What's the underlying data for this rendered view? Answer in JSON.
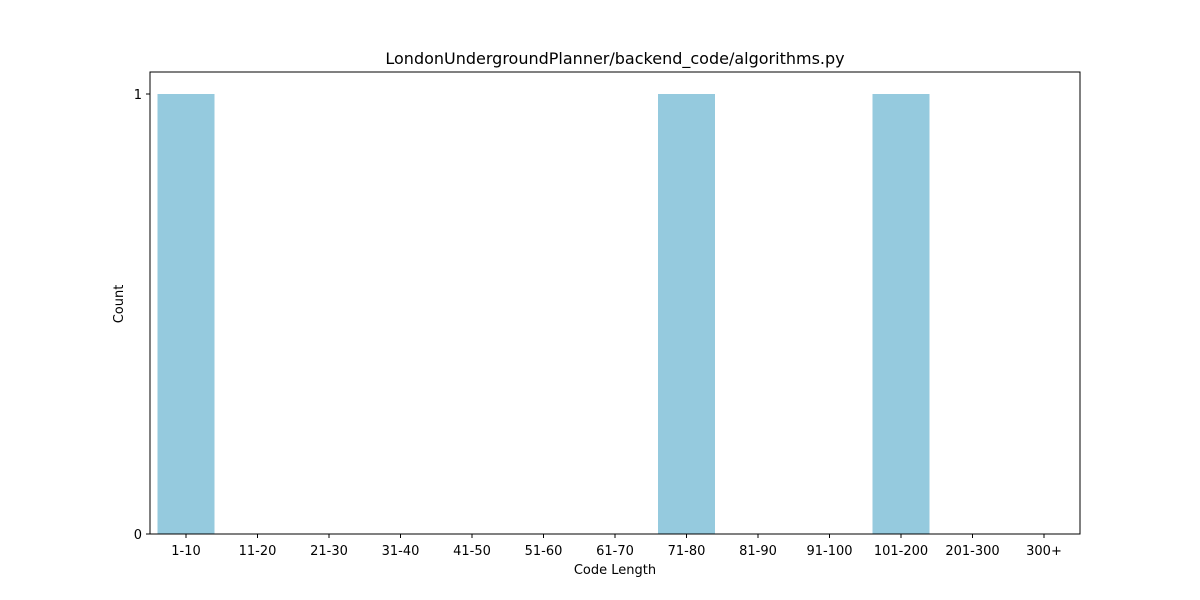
{
  "chart_data": {
    "type": "bar",
    "title": "LondonUndergroundPlanner/backend_code/algorithms.py",
    "xlabel": "Code Length",
    "ylabel": "Count",
    "categories": [
      "1-10",
      "11-20",
      "21-30",
      "31-40",
      "41-50",
      "51-60",
      "61-70",
      "71-80",
      "81-90",
      "91-100",
      "101-200",
      "201-300",
      "300+"
    ],
    "values": [
      1,
      0,
      0,
      0,
      0,
      0,
      0,
      1,
      0,
      0,
      1,
      0,
      0
    ],
    "yticks": [
      "0",
      "1"
    ],
    "ylim": [
      0,
      1.05
    ],
    "bar_color": "#95cade",
    "grid": false,
    "legend": "none"
  }
}
